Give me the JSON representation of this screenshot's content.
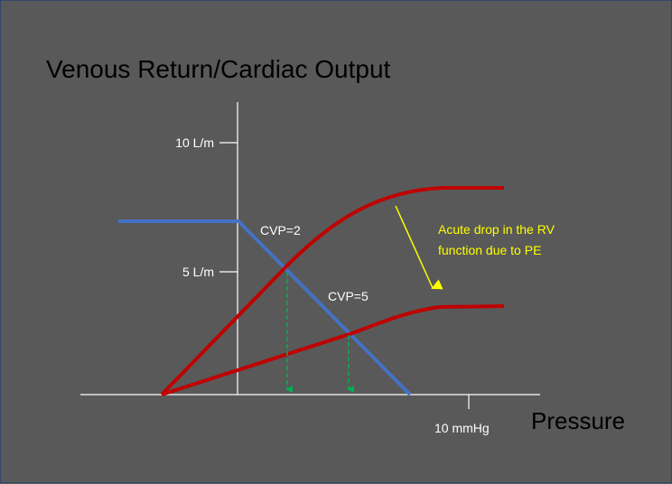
{
  "title": "Venous Return/Cardiac Output",
  "y_ticks": [
    "10 L/m",
    "5 L/m"
  ],
  "x_tick": "10 mmHg",
  "x_axis_label": "Pressure",
  "curve_labels": {
    "cvp_normal": "CVP=2",
    "cvp_pe": "CVP=5"
  },
  "annotation": {
    "line1": "Acute drop in the RV",
    "line2": "function due to PE"
  },
  "colors": {
    "background": "#595959",
    "cardiac_output_curve": "#c00000",
    "venous_return_line": "#4472c4",
    "drop_lines": "#00b050",
    "annotation_arrow": "#ffff00",
    "axes": "#ffffff"
  }
}
